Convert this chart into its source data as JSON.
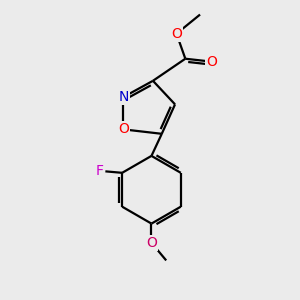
{
  "bg_color": "#ebebeb",
  "bond_color": "#000000",
  "bond_width": 1.6,
  "atom_colors": {
    "O": "#ff0000",
    "N": "#0000cc",
    "F": "#cc00cc",
    "O_methoxy": "#cc0066",
    "C": "#000000"
  },
  "font_size_atom": 10,
  "figsize": [
    3.0,
    3.0
  ],
  "dpi": 100
}
